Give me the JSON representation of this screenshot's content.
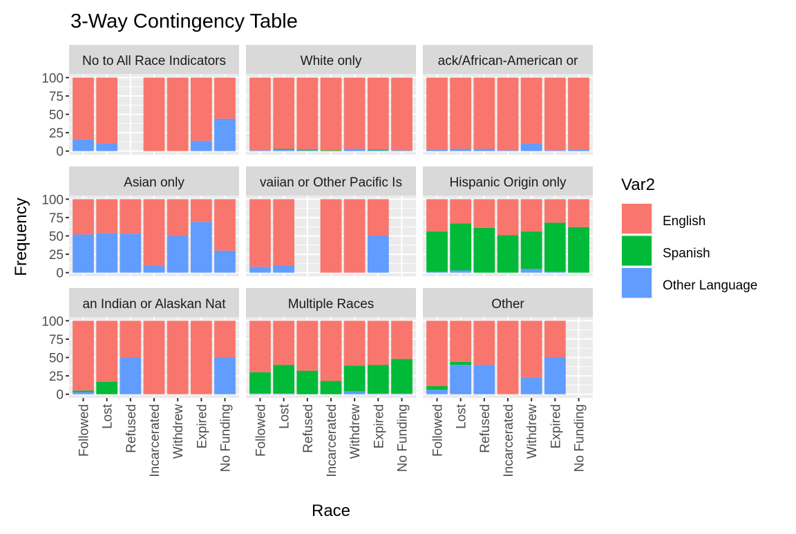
{
  "chart_data": {
    "type": "bar",
    "stacked": true,
    "title": "3-Way Contingency Table",
    "xlabel": "Race",
    "ylabel": "Frequency",
    "ylim": [
      0,
      100
    ],
    "yticks": [
      0,
      25,
      50,
      75,
      100
    ],
    "grid": true,
    "categories": [
      "Followed",
      "Lost",
      "Refused",
      "Incarcerated",
      "Withdrew",
      "Expired",
      "No Funding"
    ],
    "legend": {
      "title": "Var2",
      "position": "right",
      "entries": [
        {
          "name": "English",
          "color": "#F8766D"
        },
        {
          "name": "Spanish",
          "color": "#00BA38"
        },
        {
          "name": "Other Language",
          "color": "#619CFF"
        }
      ]
    },
    "stack_order_bottom_to_top": [
      "Other Language",
      "Spanish",
      "English"
    ],
    "panels": [
      {
        "label": "No to All Race Indicators",
        "strip_text": "No to All Race Indicators",
        "values": {
          "Other Language": [
            16,
            10,
            null,
            0,
            0,
            14,
            44
          ],
          "Spanish": [
            0,
            0,
            null,
            0,
            0,
            0,
            0
          ],
          "English": [
            84,
            90,
            null,
            100,
            100,
            86,
            56
          ]
        }
      },
      {
        "label": "White only",
        "strip_text": "White only",
        "values": {
          "Other Language": [
            1,
            2,
            1,
            0,
            3,
            1,
            1
          ],
          "Spanish": [
            0,
            1,
            1,
            1,
            0,
            1,
            0
          ],
          "English": [
            99,
            97,
            98,
            99,
            97,
            98,
            99
          ]
        }
      },
      {
        "label": "Black/African-American only",
        "strip_text": "ack/African-American or",
        "values": {
          "Other Language": [
            2,
            3,
            3,
            1,
            10,
            1,
            2
          ],
          "Spanish": [
            0,
            0,
            0,
            0,
            0,
            0,
            0
          ],
          "English": [
            98,
            97,
            97,
            99,
            90,
            99,
            98
          ]
        }
      },
      {
        "label": "Asian only",
        "strip_text": "Asian only",
        "values": {
          "Other Language": [
            52,
            54,
            53,
            10,
            50,
            69,
            30
          ],
          "Spanish": [
            0,
            0,
            0,
            0,
            0,
            0,
            0
          ],
          "English": [
            48,
            46,
            47,
            90,
            50,
            31,
            70
          ]
        }
      },
      {
        "label": "Native Hawaiian or Other Pacific Islander only",
        "strip_text": "vaiian or Other Pacific Is",
        "values": {
          "Other Language": [
            8,
            10,
            null,
            0,
            0,
            50,
            null
          ],
          "Spanish": [
            0,
            0,
            null,
            0,
            0,
            0,
            null
          ],
          "English": [
            92,
            90,
            null,
            100,
            100,
            50,
            null
          ]
        }
      },
      {
        "label": "Hispanic Origin only",
        "strip_text": "Hispanic Origin only",
        "values": {
          "Other Language": [
            1,
            3,
            0,
            0,
            5,
            1,
            0
          ],
          "Spanish": [
            55,
            64,
            61,
            51,
            51,
            67,
            62
          ],
          "English": [
            44,
            33,
            39,
            49,
            44,
            32,
            38
          ]
        }
      },
      {
        "label": "American Indian or Alaskan Native only",
        "strip_text": "an Indian or Alaskan Nat",
        "values": {
          "Other Language": [
            3,
            0,
            50,
            0,
            0,
            0,
            50
          ],
          "Spanish": [
            2,
            17,
            0,
            0,
            0,
            0,
            0
          ],
          "English": [
            95,
            83,
            50,
            100,
            100,
            100,
            50
          ]
        }
      },
      {
        "label": "Multiple Races",
        "strip_text": "Multiple Races",
        "values": {
          "Other Language": [
            1,
            1,
            0,
            0,
            4,
            1,
            1
          ],
          "Spanish": [
            29,
            39,
            32,
            18,
            35,
            39,
            47
          ],
          "English": [
            70,
            60,
            68,
            82,
            61,
            60,
            52
          ]
        }
      },
      {
        "label": "Other",
        "strip_text": "Other",
        "values": {
          "Other Language": [
            6,
            40,
            40,
            0,
            23,
            50,
            null
          ],
          "Spanish": [
            5,
            4,
            0,
            0,
            0,
            0,
            null
          ],
          "English": [
            89,
            56,
            60,
            100,
            77,
            50,
            null
          ]
        }
      }
    ]
  }
}
